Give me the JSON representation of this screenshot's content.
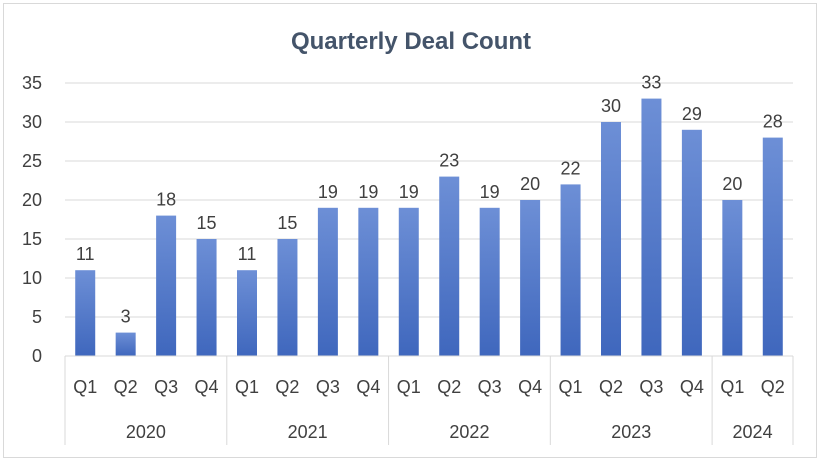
{
  "chart_data": {
    "type": "bar",
    "title": "Quarterly Deal Count",
    "xlabel": "",
    "ylabel": "",
    "ylim": [
      0,
      35
    ],
    "yticks": [
      0,
      5,
      10,
      15,
      20,
      25,
      30,
      35
    ],
    "grid": true,
    "legend": "none",
    "categories": [
      {
        "quarter": "Q1",
        "year": "2020"
      },
      {
        "quarter": "Q2",
        "year": "2020"
      },
      {
        "quarter": "Q3",
        "year": "2020"
      },
      {
        "quarter": "Q4",
        "year": "2020"
      },
      {
        "quarter": "Q1",
        "year": "2021"
      },
      {
        "quarter": "Q2",
        "year": "2021"
      },
      {
        "quarter": "Q3",
        "year": "2021"
      },
      {
        "quarter": "Q4",
        "year": "2021"
      },
      {
        "quarter": "Q1",
        "year": "2022"
      },
      {
        "quarter": "Q2",
        "year": "2022"
      },
      {
        "quarter": "Q3",
        "year": "2022"
      },
      {
        "quarter": "Q4",
        "year": "2022"
      },
      {
        "quarter": "Q1",
        "year": "2023"
      },
      {
        "quarter": "Q2",
        "year": "2023"
      },
      {
        "quarter": "Q3",
        "year": "2023"
      },
      {
        "quarter": "Q4",
        "year": "2023"
      },
      {
        "quarter": "Q1",
        "year": "2024"
      },
      {
        "quarter": "Q2",
        "year": "2024"
      }
    ],
    "years": [
      "2020",
      "2021",
      "2022",
      "2023",
      "2024"
    ],
    "values": [
      11,
      3,
      18,
      15,
      11,
      15,
      19,
      19,
      19,
      23,
      19,
      20,
      22,
      30,
      33,
      29,
      20,
      28
    ],
    "bar_color_top": "#6d8fd6",
    "bar_color_bottom": "#3f67bd"
  }
}
